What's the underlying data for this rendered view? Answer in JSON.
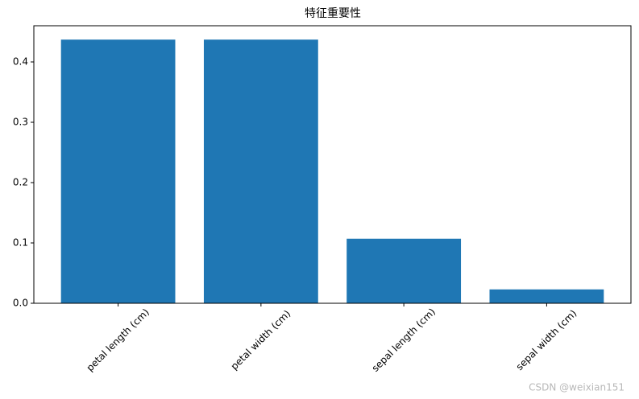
{
  "chart_data": {
    "type": "bar",
    "title": "特征重要性",
    "categories": [
      "petal length (cm)",
      "petal width (cm)",
      "sepal length (cm)",
      "sepal width (cm)"
    ],
    "values": [
      0.437,
      0.437,
      0.107,
      0.023
    ],
    "color": "#1f77b4",
    "ylim": [
      0,
      0.46
    ],
    "yticks": [
      {
        "value": 0,
        "label": "0.0"
      },
      0.1,
      0.2,
      0.3,
      0.4
    ],
    "watermark": "CSDN @weixian151"
  }
}
